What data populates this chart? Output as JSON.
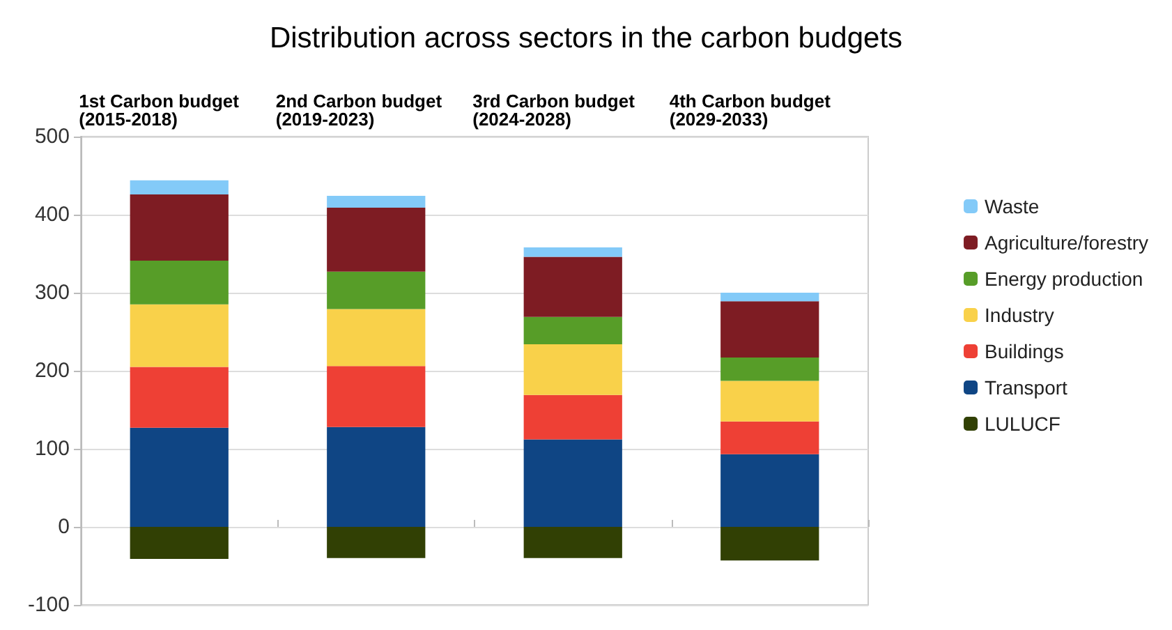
{
  "chart_data": {
    "type": "bar",
    "title": "Distribution across sectors in the carbon budgets",
    "categories": [
      "1st Carbon budget\n(2015-2018)",
      "2nd Carbon budget\n(2019-2023)",
      "3rd Carbon budget\n(2024-2028)",
      "4th Carbon budget\n(2029-2033)"
    ],
    "stacked": true,
    "series": [
      {
        "name": "LULUCF",
        "color": "#314004",
        "values": [
          -41,
          -40,
          -40,
          -43
        ]
      },
      {
        "name": "Transport",
        "color": "#0f4584",
        "values": [
          127,
          128,
          112,
          93
        ]
      },
      {
        "name": "Buildings",
        "color": "#ee4035",
        "values": [
          78,
          78,
          57,
          42
        ]
      },
      {
        "name": "Industry",
        "color": "#f9d14a",
        "values": [
          80,
          73,
          65,
          52
        ]
      },
      {
        "name": "Energy production",
        "color": "#579d28",
        "values": [
          56,
          48,
          35,
          30
        ]
      },
      {
        "name": "Agriculture/forestry",
        "color": "#7e1c23",
        "values": [
          85,
          82,
          77,
          72
        ]
      },
      {
        "name": "Waste",
        "color": "#83caf8",
        "values": [
          18,
          15,
          12,
          11
        ]
      }
    ],
    "ylim": [
      -100,
      500
    ],
    "yticks": [
      -100,
      0,
      100,
      200,
      300,
      400,
      500
    ],
    "grid": "y",
    "legend": "right"
  }
}
